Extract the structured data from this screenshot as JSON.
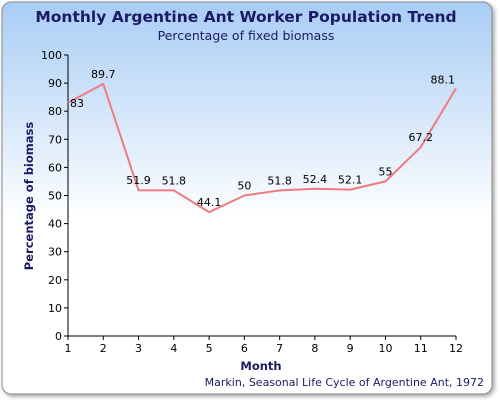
{
  "chart_data": {
    "type": "line",
    "title": "Monthly Argentine Ant Worker Population Trend",
    "subtitle": "Percentage of fixed biomass",
    "xlabel": "Month",
    "ylabel": "Percentage of biomass",
    "source": "Markin, Seasonal Life Cycle of Argentine Ant, 1972",
    "xlim": [
      1,
      12
    ],
    "ylim": [
      0,
      100
    ],
    "xticks": [
      1,
      2,
      3,
      4,
      5,
      6,
      7,
      8,
      9,
      10,
      11,
      12
    ],
    "yticks": [
      0,
      10,
      20,
      30,
      40,
      50,
      60,
      70,
      80,
      90,
      100
    ],
    "grid": {
      "x": false,
      "y": false
    },
    "legend": "none",
    "series": [
      {
        "x": [
          1,
          2,
          3,
          4,
          5,
          6,
          7,
          8,
          9,
          10,
          11,
          12
        ],
        "values": [
          83,
          89.7,
          51.9,
          51.8,
          44.1,
          50,
          51.8,
          52.4,
          52.1,
          55,
          67.2,
          88.1
        ],
        "labels": [
          "83",
          "89.7",
          "51.9",
          "51.8",
          "44.1",
          "50",
          "51.8",
          "52.4",
          "52.1",
          "55",
          "67.2",
          "88.1"
        ],
        "color": "#f07a80"
      }
    ],
    "colors": {
      "title": "#1a1a66",
      "axis_label": "#1a1a66",
      "source": "#1a1a66",
      "background_top": "#a9cdf5",
      "background_bottom": "#ffffff",
      "frame": "#8a8a8a"
    }
  }
}
